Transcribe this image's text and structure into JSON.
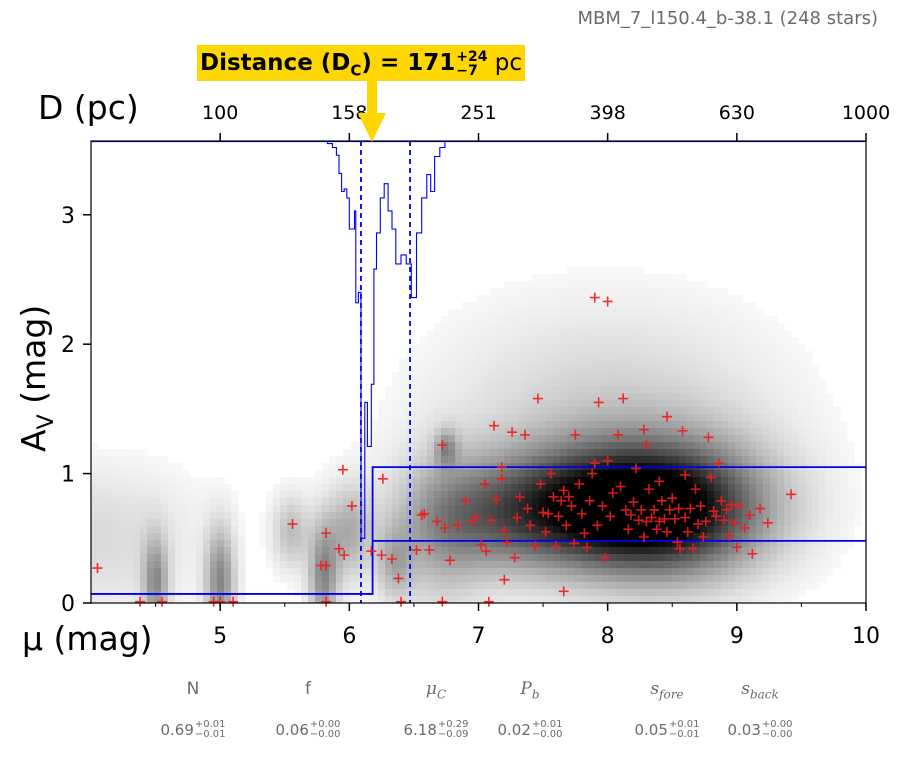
{
  "header": {
    "title": "MBM_7_l150.4_b-38.1 (248 stars)"
  },
  "banner": {
    "label": "Distance (D",
    "sub": "C",
    "eq": ") = 171",
    "plus": "+24",
    "minus": "−7",
    "unit": " pc"
  },
  "params": [
    {
      "name": "N",
      "italic": false,
      "sub": "",
      "value": "0.69",
      "plus": "+0.01",
      "minus": "−0.01"
    },
    {
      "name": "f",
      "italic": false,
      "sub": "",
      "value": "0.06",
      "plus": "+0.00",
      "minus": "−0.00"
    },
    {
      "name": "μ",
      "italic": true,
      "sub": "C",
      "value": "6.18",
      "plus": "+0.29",
      "minus": "−0.09"
    },
    {
      "name": "P",
      "italic": true,
      "sub": "b",
      "value": "0.02",
      "plus": "+0.01",
      "minus": "−0.00"
    },
    {
      "name": "s",
      "italic": true,
      "sub": "fore",
      "value": "0.05",
      "plus": "+0.01",
      "minus": "−0.01"
    },
    {
      "name": "s",
      "italic": true,
      "sub": "back",
      "value": "0.03",
      "plus": "+0.00",
      "minus": "−0.00"
    }
  ],
  "chart_data": {
    "type": "scatter",
    "xlabel": "μ (mag)",
    "ylabel": "A",
    "ylabel_sub": "V",
    "ylabel_suffix": " (mag)",
    "toplabel": "D (pc)",
    "xlim": [
      4,
      10
    ],
    "ylim": [
      0,
      3.57
    ],
    "x_ticks": [
      5,
      6,
      7,
      8,
      9,
      10
    ],
    "y_ticks": [
      0,
      1,
      2,
      3
    ],
    "top_ticks": [
      {
        "mu": 5,
        "label": "100"
      },
      {
        "mu": 6,
        "label": "158"
      },
      {
        "mu": 7,
        "label": "251"
      },
      {
        "mu": 8,
        "label": "398"
      },
      {
        "mu": 9,
        "label": "630"
      },
      {
        "mu": 10,
        "label": "1000"
      }
    ],
    "colors": {
      "stars": "#ee1c1c",
      "model": "#0000ee",
      "banner": "#ffd700",
      "axis": "#000000"
    },
    "cloud_distance_mu": 6.18,
    "dashed_lines_mu": [
      6.09,
      6.47
    ],
    "foreground_extinction": 0.07,
    "background_extinction_band": [
      0.48,
      1.05
    ],
    "stars": [
      [
        4.05,
        0.27
      ],
      [
        4.38,
        0.01
      ],
      [
        4.55,
        0.01
      ],
      [
        4.95,
        0.01
      ],
      [
        5.0,
        0.01
      ],
      [
        5.1,
        0.01
      ],
      [
        5.56,
        0.61
      ],
      [
        5.78,
        0.29
      ],
      [
        5.82,
        0.29
      ],
      [
        5.82,
        0.54
      ],
      [
        5.82,
        0.01
      ],
      [
        5.92,
        0.42
      ],
      [
        5.95,
        1.03
      ],
      [
        5.96,
        0.37
      ],
      [
        6.02,
        0.75
      ],
      [
        6.17,
        0.4
      ],
      [
        6.26,
        0.96
      ],
      [
        6.25,
        0.37
      ],
      [
        6.33,
        0.34
      ],
      [
        6.38,
        0.19
      ],
      [
        6.4,
        0.01
      ],
      [
        6.52,
        0.41
      ],
      [
        6.56,
        0.68
      ],
      [
        6.58,
        0.69
      ],
      [
        6.62,
        0.41
      ],
      [
        6.68,
        0.63
      ],
      [
        6.72,
        1.22
      ],
      [
        6.72,
        0.01
      ],
      [
        6.74,
        0.58
      ],
      [
        6.78,
        0.33
      ],
      [
        6.84,
        0.6
      ],
      [
        6.9,
        0.79
      ],
      [
        6.95,
        0.63
      ],
      [
        6.98,
        0.66
      ],
      [
        7.02,
        0.45
      ],
      [
        7.05,
        0.92
      ],
      [
        7.06,
        0.4
      ],
      [
        7.08,
        0.01
      ],
      [
        7.1,
        0.64
      ],
      [
        7.12,
        1.37
      ],
      [
        7.14,
        0.8
      ],
      [
        7.18,
        0.96
      ],
      [
        7.18,
        1.05
      ],
      [
        7.2,
        0.56
      ],
      [
        7.2,
        0.18
      ],
      [
        7.22,
        0.47
      ],
      [
        7.26,
        1.32
      ],
      [
        7.28,
        0.35
      ],
      [
        7.3,
        0.66
      ],
      [
        7.32,
        0.82
      ],
      [
        7.36,
        1.3
      ],
      [
        7.38,
        0.73
      ],
      [
        7.4,
        0.6
      ],
      [
        7.44,
        0.44
      ],
      [
        7.46,
        1.58
      ],
      [
        7.48,
        0.92
      ],
      [
        7.5,
        0.7
      ],
      [
        7.52,
        0.55
      ],
      [
        7.54,
        0.69
      ],
      [
        7.56,
        1.0
      ],
      [
        7.58,
        0.82
      ],
      [
        7.6,
        0.44
      ],
      [
        7.62,
        0.67
      ],
      [
        7.64,
        0.79
      ],
      [
        7.66,
        0.09
      ],
      [
        7.66,
        0.87
      ],
      [
        7.68,
        0.6
      ],
      [
        7.7,
        0.82
      ],
      [
        7.72,
        0.75
      ],
      [
        7.74,
        0.46
      ],
      [
        7.75,
        1.3
      ],
      [
        7.78,
        0.92
      ],
      [
        7.8,
        0.69
      ],
      [
        7.82,
        0.54
      ],
      [
        7.84,
        0.43
      ],
      [
        7.86,
        0.79
      ],
      [
        7.88,
        1.0
      ],
      [
        7.9,
        1.08
      ],
      [
        7.9,
        2.36
      ],
      [
        7.92,
        0.6
      ],
      [
        7.93,
        1.55
      ],
      [
        7.96,
        0.75
      ],
      [
        7.98,
        0.35
      ],
      [
        8.0,
        2.33
      ],
      [
        8.0,
        1.1
      ],
      [
        8.02,
        0.67
      ],
      [
        8.04,
        0.85
      ],
      [
        8.08,
        1.3
      ],
      [
        8.1,
        0.9
      ],
      [
        8.12,
        1.58
      ],
      [
        8.14,
        0.72
      ],
      [
        8.16,
        0.57
      ],
      [
        8.18,
        0.68
      ],
      [
        8.2,
        0.78
      ],
      [
        8.22,
        1.04
      ],
      [
        8.24,
        0.64
      ],
      [
        8.26,
        0.72
      ],
      [
        8.28,
        0.51
      ],
      [
        8.28,
        1.34
      ],
      [
        8.3,
        1.22
      ],
      [
        8.3,
        0.63
      ],
      [
        8.32,
        0.88
      ],
      [
        8.34,
        0.66
      ],
      [
        8.36,
        0.72
      ],
      [
        8.38,
        0.57
      ],
      [
        8.4,
        0.63
      ],
      [
        8.4,
        0.94
      ],
      [
        8.42,
        0.79
      ],
      [
        8.44,
        0.65
      ],
      [
        8.46,
        1.44
      ],
      [
        8.46,
        0.55
      ],
      [
        8.48,
        0.72
      ],
      [
        8.5,
        0.81
      ],
      [
        8.52,
        0.65
      ],
      [
        8.54,
        0.47
      ],
      [
        8.55,
        0.73
      ],
      [
        8.56,
        0.42
      ],
      [
        8.58,
        1.33
      ],
      [
        8.6,
        0.66
      ],
      [
        8.6,
        0.99
      ],
      [
        8.62,
        0.55
      ],
      [
        8.64,
        0.73
      ],
      [
        8.66,
        0.42
      ],
      [
        8.68,
        0.88
      ],
      [
        8.7,
        0.61
      ],
      [
        8.72,
        0.75
      ],
      [
        8.74,
        0.51
      ],
      [
        8.76,
        0.63
      ],
      [
        8.78,
        1.28
      ],
      [
        8.8,
        0.97
      ],
      [
        8.82,
        0.71
      ],
      [
        8.84,
        0.67
      ],
      [
        8.86,
        1.08
      ],
      [
        8.88,
        0.79
      ],
      [
        8.9,
        0.64
      ],
      [
        8.92,
        0.72
      ],
      [
        8.94,
        0.52
      ],
      [
        8.96,
        0.76
      ],
      [
        8.98,
        0.62
      ],
      [
        9.0,
        0.43
      ],
      [
        9.02,
        0.75
      ],
      [
        9.06,
        0.58
      ],
      [
        9.1,
        0.68
      ],
      [
        9.12,
        0.38
      ],
      [
        9.18,
        0.73
      ],
      [
        9.24,
        0.62
      ],
      [
        9.42,
        0.84
      ]
    ],
    "dense_regions": [
      {
        "mu": 8.45,
        "av": 0.72,
        "smu": 0.55,
        "sav": 0.36,
        "w": 0.95
      },
      {
        "mu": 7.75,
        "av": 0.74,
        "smu": 0.55,
        "sav": 0.32,
        "w": 0.55
      },
      {
        "mu": 7.05,
        "av": 0.65,
        "smu": 0.45,
        "sav": 0.3,
        "w": 0.3
      },
      {
        "mu": 8.0,
        "av": 1.45,
        "smu": 0.9,
        "sav": 0.6,
        "w": 0.18
      },
      {
        "mu": 6.7,
        "av": 0.5,
        "smu": 0.25,
        "sav": 0.45,
        "w": 0.2
      },
      {
        "mu": 4.5,
        "av": 0.15,
        "smu": 0.07,
        "sav": 0.25,
        "w": 0.4
      },
      {
        "mu": 5.0,
        "av": 0.15,
        "smu": 0.08,
        "sav": 0.3,
        "w": 0.45
      },
      {
        "mu": 5.8,
        "av": 0.2,
        "smu": 0.08,
        "sav": 0.3,
        "w": 0.45
      },
      {
        "mu": 5.55,
        "av": 0.55,
        "smu": 0.1,
        "sav": 0.2,
        "w": 0.25
      },
      {
        "mu": 6.0,
        "av": 0.55,
        "smu": 0.12,
        "sav": 0.25,
        "w": 0.3
      },
      {
        "mu": 6.35,
        "av": 0.3,
        "smu": 0.1,
        "sav": 0.2,
        "w": 0.25
      },
      {
        "mu": 6.75,
        "av": 1.2,
        "smu": 0.06,
        "sav": 0.1,
        "w": 0.3
      },
      {
        "mu": 4.0,
        "av": 0.5,
        "smu": 0.6,
        "sav": 0.4,
        "w": 0.15
      }
    ],
    "mu_posterior_trace": [
      [
        5.78,
        3.57
      ],
      [
        5.83,
        3.55
      ],
      [
        5.87,
        3.52
      ],
      [
        5.9,
        3.46
      ],
      [
        5.92,
        3.32
      ],
      [
        5.94,
        3.18
      ],
      [
        5.96,
        3.2
      ],
      [
        5.98,
        3.13
      ],
      [
        6.0,
        2.89
      ],
      [
        6.04,
        3.03
      ],
      [
        6.05,
        2.32
      ],
      [
        6.07,
        2.4
      ],
      [
        6.09,
        0.5
      ],
      [
        6.12,
        1.55
      ],
      [
        6.14,
        1.21
      ],
      [
        6.17,
        1.69
      ],
      [
        6.19,
        2.58
      ],
      [
        6.21,
        2.86
      ],
      [
        6.24,
        3.13
      ],
      [
        6.27,
        3.24
      ],
      [
        6.3,
        3.03
      ],
      [
        6.33,
        2.89
      ],
      [
        6.36,
        2.62
      ],
      [
        6.4,
        2.69
      ],
      [
        6.44,
        2.62
      ],
      [
        6.48,
        2.36
      ],
      [
        6.52,
        2.86
      ],
      [
        6.56,
        3.13
      ],
      [
        6.6,
        3.31
      ],
      [
        6.63,
        3.18
      ],
      [
        6.66,
        3.45
      ],
      [
        6.7,
        3.52
      ],
      [
        6.74,
        3.57
      ]
    ]
  }
}
